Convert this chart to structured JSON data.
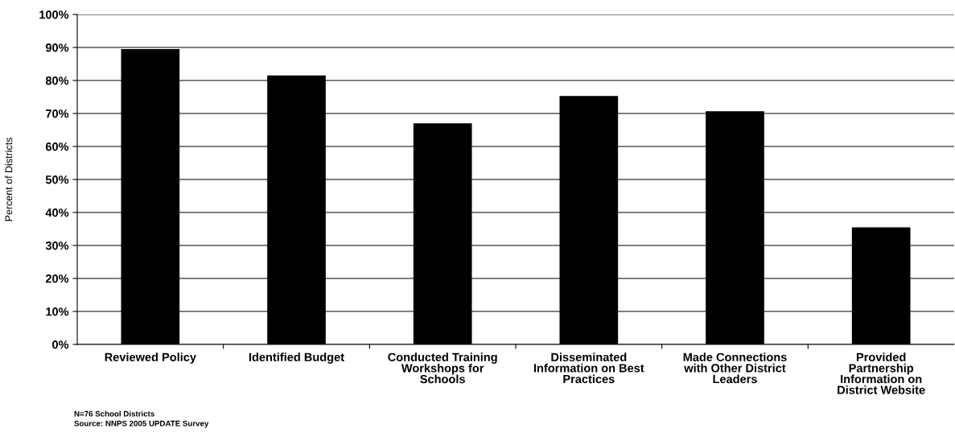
{
  "chart_data": {
    "type": "bar",
    "ylabel": "Percent of Districts",
    "categories": [
      "Reviewed Policy",
      "Identified Budget",
      "Conducted Training Workshops for Schools",
      "Disseminated Information on Best Practices",
      "Made Connections with Other District Leaders",
      "Provided Partnership Information on District Website"
    ],
    "values": [
      89.5,
      81.5,
      67,
      75.3,
      70.7,
      35.5
    ],
    "color": "#000000",
    "ylim": [
      0,
      100
    ],
    "yticks": [
      {
        "value": 0,
        "label": "0%"
      },
      {
        "value": 10,
        "label": "10%"
      },
      {
        "value": 20,
        "label": "20%"
      },
      {
        "value": 30,
        "label": "30%"
      },
      {
        "value": 40,
        "label": "40%"
      },
      {
        "value": 50,
        "label": "50%"
      },
      {
        "value": 60,
        "label": "60%"
      },
      {
        "value": 70,
        "label": "70%"
      },
      {
        "value": 80,
        "label": "80%"
      },
      {
        "value": 90,
        "label": "90%"
      },
      {
        "value": 100,
        "label": "100%"
      }
    ],
    "grid": "y",
    "annotations": [
      "N=76 School Districts",
      "Source: NNPS 2005 UPDATE Survey"
    ]
  }
}
